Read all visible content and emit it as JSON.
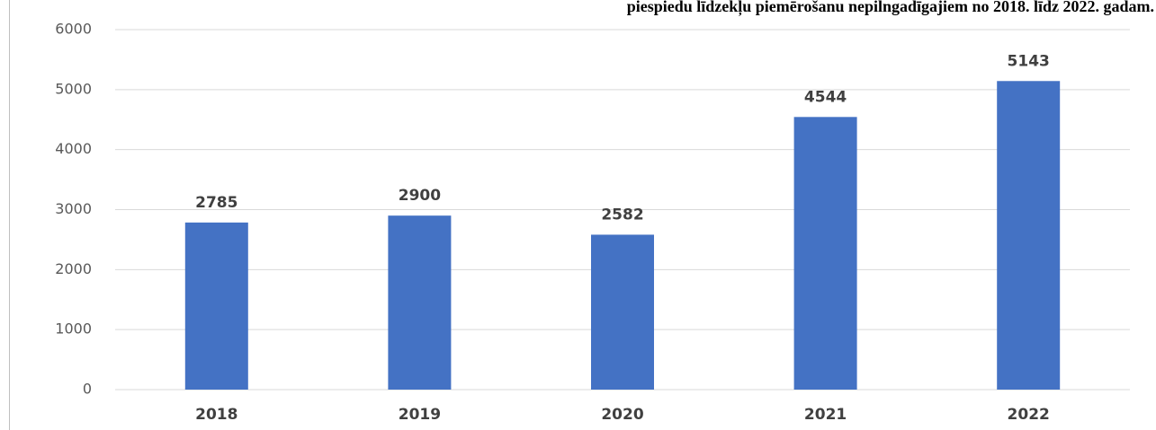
{
  "chart_data": {
    "type": "bar",
    "title": "piespiedu līdzekļu piemērošanu nepilngadīgajiem no 2018. līdz 2022. gadam.",
    "categories": [
      "2018",
      "2019",
      "2020",
      "2021",
      "2022"
    ],
    "values": [
      2785,
      2900,
      2582,
      4544,
      5143
    ],
    "color": "#4472c4",
    "ylim": [
      0,
      6000
    ],
    "yticks": [
      0,
      1000,
      2000,
      3000,
      4000,
      5000,
      6000
    ],
    "grid": true
  }
}
